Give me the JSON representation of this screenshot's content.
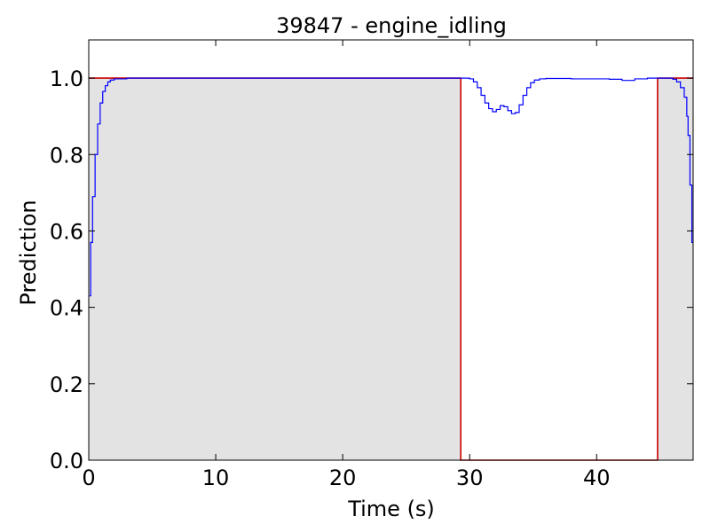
{
  "chart_data": {
    "type": "line",
    "title": "39847 - engine_idling",
    "xlabel": "Time (s)",
    "ylabel": "Prediction",
    "xlim": [
      0,
      47.6
    ],
    "ylim": [
      0,
      1.1
    ],
    "xticks": [
      0,
      10,
      20,
      30,
      40
    ],
    "yticks": [
      0.0,
      0.2,
      0.4,
      0.6,
      0.8,
      1.0
    ],
    "xtick_labels": [
      "0",
      "10",
      "20",
      "30",
      "40"
    ],
    "ytick_labels": [
      "0.0",
      "0.2",
      "0.4",
      "0.6",
      "0.8",
      "1.0"
    ],
    "grid": false,
    "legend": false,
    "colors": {
      "prediction": "#0000ff",
      "ground_truth": "#cc0000",
      "region_fill": "#e3e3e3"
    },
    "shaded_regions": [
      {
        "x0": 0,
        "x1": 29.3
      },
      {
        "x0": 44.8,
        "x1": 47.6
      }
    ],
    "series": [
      {
        "role": "ground_truth",
        "step": true,
        "x": [
          0,
          29.3,
          29.3,
          44.8,
          44.8,
          47.6
        ],
        "y": [
          1,
          1,
          0,
          0,
          1,
          1
        ]
      },
      {
        "role": "prediction",
        "step": true,
        "x": [
          0.05,
          0.15,
          0.3,
          0.5,
          0.7,
          0.9,
          1.1,
          1.3,
          1.5,
          1.7,
          2.0,
          3.0,
          10,
          20,
          29.3,
          30.0,
          30.3,
          30.6,
          30.9,
          31.2,
          31.5,
          31.8,
          32.1,
          32.4,
          32.7,
          33.0,
          33.3,
          33.6,
          33.9,
          34.2,
          34.5,
          34.8,
          35.1,
          35.5,
          36.0,
          38.0,
          40.0,
          41.0,
          42.0,
          43.0,
          44.0,
          45.5,
          46.0,
          46.3,
          46.6,
          46.9,
          47.1,
          47.2,
          47.35,
          47.5,
          47.6
        ],
        "y": [
          0.43,
          0.57,
          0.69,
          0.8,
          0.88,
          0.935,
          0.965,
          0.98,
          0.99,
          0.995,
          0.998,
          1.0,
          1.0,
          1.0,
          1.0,
          0.998,
          0.99,
          0.975,
          0.955,
          0.935,
          0.92,
          0.912,
          0.918,
          0.928,
          0.925,
          0.915,
          0.907,
          0.91,
          0.93,
          0.955,
          0.975,
          0.988,
          0.995,
          0.998,
          0.999,
          0.998,
          0.998,
          0.997,
          0.994,
          0.998,
          1.0,
          1.0,
          0.997,
          0.99,
          0.975,
          0.95,
          0.9,
          0.85,
          0.72,
          0.57,
          0.57
        ]
      }
    ]
  }
}
